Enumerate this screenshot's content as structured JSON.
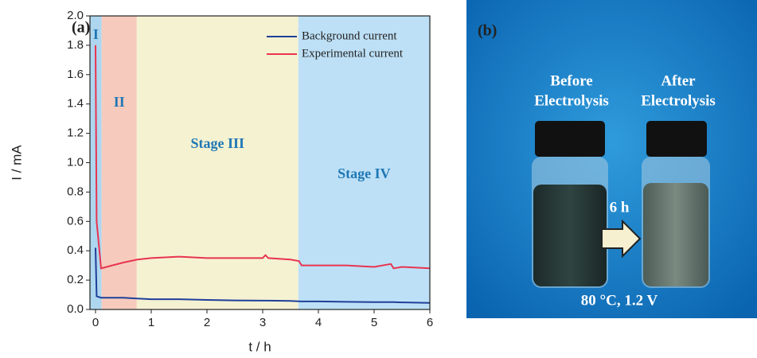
{
  "chart_data": {
    "type": "line",
    "panel_label": "(a)",
    "x_label": "t / h",
    "y_label": "I / mA",
    "xlim": [
      -0.1,
      6
    ],
    "ylim": [
      0,
      2
    ],
    "xticks": [
      0,
      1,
      2,
      3,
      4,
      5,
      6
    ],
    "yticks": [
      {
        "value": 0,
        "label": "0.0"
      },
      {
        "value": 0.2,
        "label": "0.2"
      },
      {
        "value": 0.4,
        "label": "0.4"
      },
      {
        "value": 0.6,
        "label": "0.6"
      },
      {
        "value": 0.8,
        "label": "0.8"
      },
      {
        "value": 1,
        "label": "1.0"
      },
      {
        "value": 1.2,
        "label": "1.2"
      },
      {
        "value": 1.4,
        "label": "1.4"
      },
      {
        "value": 1.6,
        "label": "1.6"
      },
      {
        "value": 1.8,
        "label": "1.8"
      },
      {
        "value": 2,
        "label": "2.0"
      }
    ],
    "regions": [
      {
        "label": "I",
        "start": -0.1,
        "end": 0.11,
        "color": "#aed6ef"
      },
      {
        "label": "II",
        "start": 0.11,
        "end": 0.74,
        "color": "#f6cbbd"
      },
      {
        "label": "Stage III",
        "start": 0.74,
        "end": 3.64,
        "color": "#f5f2d2"
      },
      {
        "label": "Stage IV",
        "start": 3.64,
        "end": 6,
        "color": "#bde0f6"
      }
    ],
    "region_label_color": "#1f77b4",
    "legend": "upper right",
    "x": [
      0,
      0.02,
      0.1,
      0.3,
      0.5,
      0.75,
      1,
      1.5,
      2,
      2.5,
      3,
      3.05,
      3.1,
      3.5,
      3.65,
      3.7,
      4,
      4.5,
      5,
      5.3,
      5.35,
      5.5,
      6
    ],
    "series": [
      {
        "name": "Background current",
        "color": "#1f3f99",
        "values": [
          0.42,
          0.09,
          0.08,
          0.08,
          0.08,
          0.075,
          0.07,
          0.07,
          0.065,
          0.062,
          0.06,
          0.06,
          0.06,
          0.058,
          0.056,
          0.055,
          0.055,
          0.052,
          0.05,
          0.05,
          0.05,
          0.048,
          0.045
        ]
      },
      {
        "name": "Experimental current",
        "color": "#e8344f",
        "values": [
          1.8,
          0.6,
          0.28,
          0.3,
          0.32,
          0.34,
          0.35,
          0.36,
          0.35,
          0.35,
          0.35,
          0.37,
          0.35,
          0.34,
          0.33,
          0.3,
          0.3,
          0.3,
          0.29,
          0.31,
          0.28,
          0.29,
          0.28
        ]
      }
    ]
  },
  "photo": {
    "panel_label": "(b)",
    "before": [
      "Before",
      "Electrolysis"
    ],
    "after": [
      "After",
      "Electrolysis"
    ],
    "duration": "6 h",
    "conditions": "80 °C, 1.2 V"
  }
}
